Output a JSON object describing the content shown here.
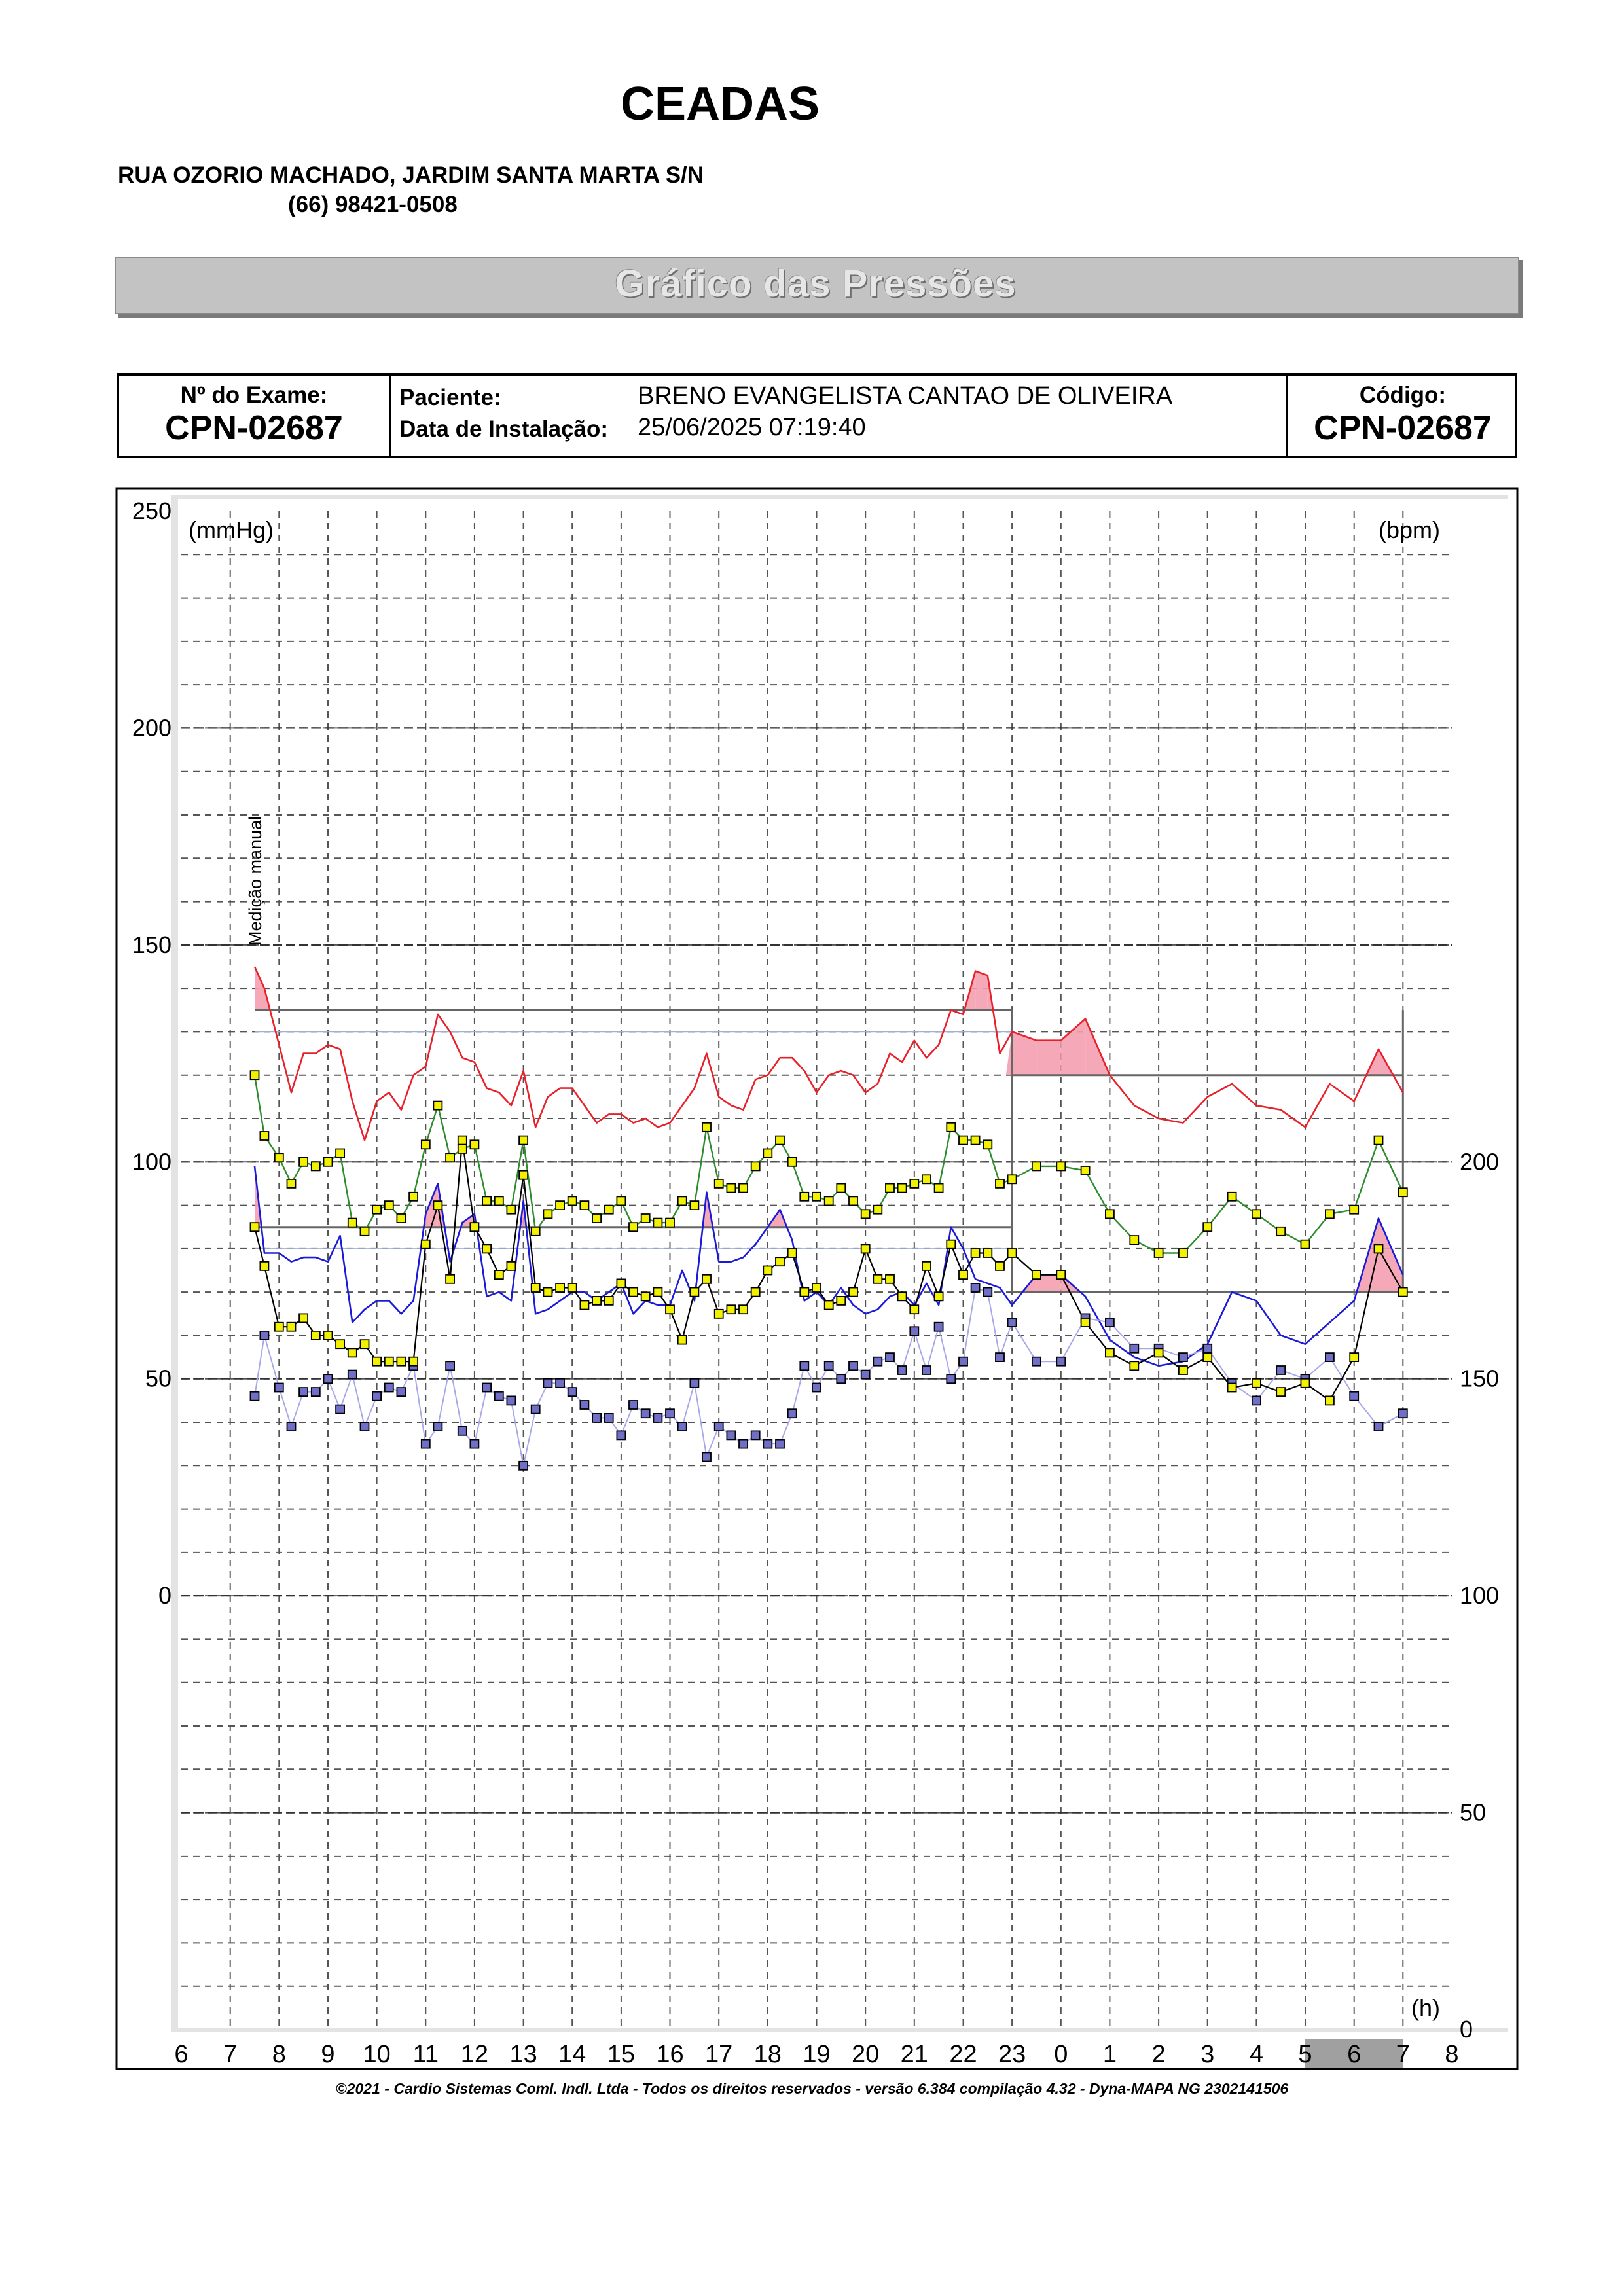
{
  "header": {
    "clinic_name": "CEADAS",
    "address": "RUA OZORIO MACHADO, JARDIM SANTA MARTA S/N",
    "phone": "(66) 98421-0508",
    "banner_title": "Gráfico das Pressões"
  },
  "exam": {
    "exam_label": "Nº do Exame:",
    "exam_number": "CPN-02687",
    "patient_label": "Paciente:",
    "patient_name": "BRENO EVANGELISTA CANTAO DE   OLIVEIRA",
    "install_label": "Data de Instalação:",
    "install_date": "25/06/2025 07:19:40",
    "code_label": "Código:",
    "code": "CPN-02687"
  },
  "footer": "©2021 - Cardio Sistemas Coml. Indl. Ltda - Todos os direitos reservados - versão 6.384 compilação 4.32 - Dyna-MAPA NG 2302141506",
  "colors": {
    "systolic": "#e8202a",
    "mean": "#2e8b2e",
    "diastolic": "#1a1ad8",
    "heart_rate_points": "#6f6fc8",
    "bottom_series": "#000000",
    "marker_yellow": "#f2f200",
    "excess_fill": "#f4a0b0",
    "sleep_band": "#a0a0a0"
  },
  "chart_data": {
    "type": "line",
    "left_unit": "(mmHg)",
    "right_unit": "(bpm)",
    "time_unit": "(h)",
    "manual_annotation": "Medição manual",
    "left_ticks": [
      "250",
      "200",
      "150",
      "100",
      "50",
      "0"
    ],
    "left_tick_values": [
      250,
      200,
      150,
      100,
      50,
      0
    ],
    "right_ticks": [
      "200",
      "150",
      "100",
      "50",
      "0"
    ],
    "right_tick_values": [
      200,
      150,
      100,
      50,
      0
    ],
    "ylim": [
      -100,
      250
    ],
    "right_scale": {
      "zero_at_left": -100,
      "units_per_left": 1
    },
    "x_ticks": [
      "6",
      "7",
      "8",
      "9",
      "10",
      "11",
      "12",
      "13",
      "14",
      "15",
      "16",
      "17",
      "18",
      "19",
      "20",
      "21",
      "22",
      "23",
      "0",
      "1",
      "2",
      "3",
      "4",
      "5",
      "6",
      "7",
      "8"
    ],
    "xlim": [
      6,
      32
    ],
    "sleep_period": [
      29.0,
      31.0
    ],
    "day_period": [
      7.5,
      23.0
    ],
    "night_period": [
      23.0,
      31.0
    ],
    "limits": {
      "systolic_day": 135,
      "diastolic_day": 85,
      "systolic_night": 120,
      "diastolic_night": 70,
      "systolic_day_hint": 130,
      "diastolic_day_hint": 80
    },
    "systolic": {
      "x": [
        7.5,
        7.7,
        8,
        8.25,
        8.5,
        8.75,
        9,
        9.25,
        9.5,
        9.75,
        10,
        10.25,
        10.5,
        10.75,
        11,
        11.25,
        11.5,
        11.75,
        12,
        12.25,
        12.5,
        12.75,
        13,
        13.25,
        13.5,
        13.75,
        14,
        14.25,
        14.5,
        14.75,
        15,
        15.25,
        15.5,
        15.75,
        16,
        16.25,
        16.5,
        16.75,
        17,
        17.25,
        17.5,
        17.75,
        18,
        18.25,
        18.5,
        18.75,
        19,
        19.25,
        19.5,
        19.75,
        20,
        20.25,
        20.5,
        20.75,
        21,
        21.25,
        21.5,
        21.75,
        22,
        22.25,
        22.5,
        22.75,
        23,
        23.5,
        24,
        24.5,
        25,
        25.5,
        26,
        26.5,
        27,
        27.5,
        28,
        28.5,
        29,
        29.5,
        30,
        30.5,
        31
      ],
      "values": [
        145,
        140,
        127,
        116,
        125,
        125,
        127,
        126,
        114,
        105,
        114,
        116,
        112,
        120,
        122,
        134,
        130,
        124,
        123,
        117,
        116,
        113,
        121,
        108,
        115,
        117,
        117,
        113,
        109,
        111,
        111,
        109,
        110,
        108,
        109,
        113,
        117,
        125,
        115,
        113,
        112,
        119,
        120,
        124,
        124,
        121,
        116,
        120,
        121,
        120,
        116,
        118,
        125,
        123,
        128,
        124,
        127,
        135,
        134,
        144,
        143,
        125,
        130,
        128,
        128,
        133,
        120,
        113,
        110,
        109,
        115,
        118,
        113,
        112,
        108,
        118,
        114,
        126,
        116
      ]
    },
    "mean": {
      "x": [
        7.5,
        7.7,
        8,
        8.25,
        8.5,
        8.75,
        9,
        9.25,
        9.5,
        9.75,
        10,
        10.25,
        10.5,
        10.75,
        11,
        11.25,
        11.5,
        11.75,
        12,
        12.25,
        12.5,
        12.75,
        13,
        13.25,
        13.5,
        13.75,
        14,
        14.25,
        14.5,
        14.75,
        15,
        15.25,
        15.5,
        15.75,
        16,
        16.25,
        16.5,
        16.75,
        17,
        17.25,
        17.5,
        17.75,
        18,
        18.25,
        18.5,
        18.75,
        19,
        19.25,
        19.5,
        19.75,
        20,
        20.25,
        20.5,
        20.75,
        21,
        21.25,
        21.5,
        21.75,
        22,
        22.25,
        22.5,
        22.75,
        23,
        23.5,
        24,
        24.5,
        25,
        25.5,
        26,
        26.5,
        27,
        27.5,
        28,
        28.5,
        29,
        29.5,
        30,
        30.5,
        31
      ],
      "values": [
        120,
        106,
        101,
        95,
        100,
        99,
        100,
        102,
        86,
        84,
        89,
        90,
        87,
        92,
        104,
        113,
        101,
        103,
        104,
        91,
        91,
        89,
        105,
        84,
        88,
        90,
        91,
        90,
        87,
        89,
        91,
        85,
        87,
        86,
        86,
        91,
        90,
        108,
        95,
        94,
        94,
        99,
        102,
        105,
        100,
        92,
        92,
        91,
        94,
        91,
        88,
        89,
        94,
        94,
        95,
        96,
        94,
        108,
        105,
        105,
        104,
        95,
        96,
        99,
        99,
        98,
        88,
        82,
        79,
        79,
        85,
        92,
        88,
        84,
        81,
        88,
        89,
        105,
        93
      ]
    },
    "diastolic": {
      "x": [
        7.5,
        7.7,
        8,
        8.25,
        8.5,
        8.75,
        9,
        9.25,
        9.5,
        9.75,
        10,
        10.25,
        10.5,
        10.75,
        11,
        11.25,
        11.5,
        11.75,
        12,
        12.25,
        12.5,
        12.75,
        13,
        13.25,
        13.5,
        13.75,
        14,
        14.25,
        14.5,
        14.75,
        15,
        15.25,
        15.5,
        15.75,
        16,
        16.25,
        16.5,
        16.75,
        17,
        17.25,
        17.5,
        17.75,
        18,
        18.25,
        18.5,
        18.75,
        19,
        19.25,
        19.5,
        19.75,
        20,
        20.25,
        20.5,
        20.75,
        21,
        21.25,
        21.5,
        21.75,
        22,
        22.25,
        22.5,
        22.75,
        23,
        23.5,
        24,
        24.5,
        25,
        25.5,
        26,
        26.5,
        27,
        27.5,
        28,
        28.5,
        29,
        29.5,
        30,
        30.5,
        31
      ],
      "values": [
        99,
        79,
        79,
        77,
        78,
        78,
        77,
        83,
        63,
        66,
        68,
        68,
        65,
        68,
        88,
        95,
        77,
        86,
        88,
        69,
        70,
        68,
        91,
        65,
        66,
        68,
        70,
        70,
        68,
        70,
        72,
        65,
        68,
        67,
        67,
        75,
        68,
        93,
        77,
        77,
        78,
        81,
        85,
        89,
        82,
        68,
        70,
        67,
        71,
        67,
        65,
        66,
        69,
        70,
        67,
        72,
        67,
        85,
        80,
        73,
        72,
        71,
        67,
        74,
        74,
        69,
        59,
        55,
        53,
        54,
        58,
        70,
        68,
        60,
        58,
        63,
        68,
        87,
        74
      ]
    },
    "heart_rate": {
      "x": [
        7.5,
        7.7,
        8,
        8.25,
        8.5,
        8.75,
        9,
        9.25,
        9.5,
        9.75,
        10,
        10.25,
        10.5,
        10.75,
        11,
        11.25,
        11.5,
        11.75,
        12,
        12.25,
        12.5,
        12.75,
        13,
        13.25,
        13.5,
        13.75,
        14,
        14.25,
        14.5,
        14.75,
        15,
        15.25,
        15.5,
        15.75,
        16,
        16.25,
        16.5,
        16.75,
        17,
        17.25,
        17.5,
        17.75,
        18,
        18.25,
        18.5,
        18.75,
        19,
        19.25,
        19.5,
        19.75,
        20,
        20.25,
        20.5,
        20.75,
        21,
        21.25,
        21.5,
        21.75,
        22,
        22.25,
        22.5,
        22.75,
        23,
        23.5,
        24,
        24.5,
        25,
        25.5,
        26,
        26.5,
        27,
        27.5,
        28,
        28.5,
        29,
        29.5,
        30,
        30.5,
        31
      ],
      "values": [
        146,
        160,
        148,
        139,
        147,
        147,
        150,
        143,
        151,
        139,
        146,
        148,
        147,
        153,
        135,
        139,
        153,
        138,
        135,
        148,
        146,
        145,
        130,
        143,
        149,
        149,
        147,
        144,
        141,
        141,
        137,
        144,
        142,
        141,
        142,
        139,
        149,
        132,
        139,
        137,
        135,
        137,
        135,
        135,
        142,
        153,
        148,
        153,
        150,
        153,
        151,
        154,
        155,
        152,
        161,
        152,
        162,
        150,
        154,
        171,
        170,
        155,
        163,
        154,
        154,
        164,
        163,
        157,
        157,
        155,
        157,
        149,
        145,
        152,
        150,
        155,
        146,
        139,
        142
      ]
    },
    "bottom_series": {
      "x": [
        7.5,
        7.7,
        8,
        8.25,
        8.5,
        8.75,
        9,
        9.25,
        9.5,
        9.75,
        10,
        10.25,
        10.5,
        10.75,
        11,
        11.25,
        11.5,
        11.75,
        12,
        12.25,
        12.5,
        12.75,
        13,
        13.25,
        13.5,
        13.75,
        14,
        14.25,
        14.5,
        14.75,
        15,
        15.25,
        15.5,
        15.75,
        16,
        16.25,
        16.5,
        16.75,
        17,
        17.25,
        17.5,
        17.75,
        18,
        18.25,
        18.5,
        18.75,
        19,
        19.25,
        19.5,
        19.75,
        20,
        20.25,
        20.5,
        20.75,
        21,
        21.25,
        21.5,
        21.75,
        22,
        22.25,
        22.5,
        22.75,
        23,
        23.5,
        24,
        24.5,
        25,
        25.5,
        26,
        26.5,
        27,
        27.5,
        28,
        28.5,
        29,
        29.5,
        30,
        30.5,
        31
      ],
      "values": [
        85,
        76,
        62,
        62,
        64,
        60,
        60,
        58,
        56,
        58,
        54,
        54,
        54,
        54,
        81,
        90,
        73,
        105,
        85,
        80,
        74,
        76,
        97,
        71,
        70,
        71,
        71,
        67,
        68,
        68,
        72,
        70,
        69,
        70,
        66,
        59,
        70,
        73,
        65,
        66,
        66,
        70,
        75,
        77,
        79,
        70,
        71,
        67,
        68,
        70,
        80,
        73,
        73,
        69,
        66,
        76,
        69,
        81,
        74,
        79,
        79,
        76,
        79,
        74,
        74,
        63,
        56,
        53,
        56,
        52,
        55,
        48,
        49,
        47,
        49,
        45,
        55,
        80,
        70
      ]
    }
  }
}
